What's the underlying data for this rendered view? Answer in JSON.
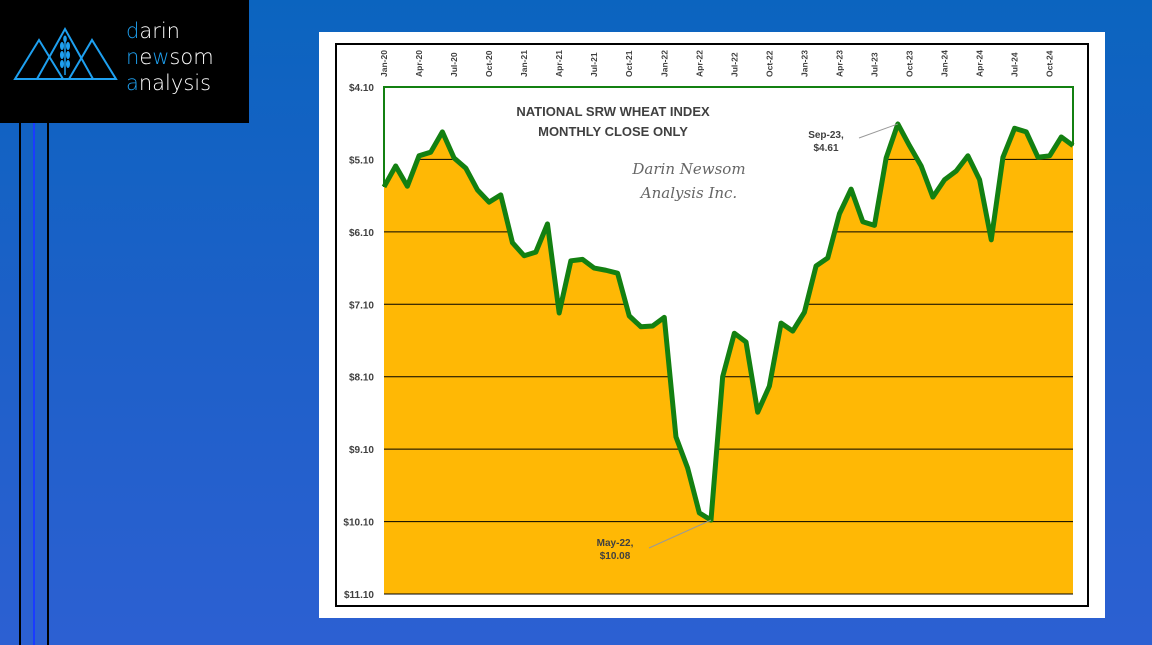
{
  "logo": {
    "line1_first": "d",
    "line1_rest": "arin",
    "line2_first": "n",
    "line2_mid": "ew",
    "line2_e": "e",
    "line2_n": "n",
    "line2_rest": "som",
    "line3_first": "a",
    "line3_rest": "nalysis",
    "text": "darin newsom analysis"
  },
  "colors": {
    "fill": "#ffb805",
    "line": "#138011",
    "grid": "#000000",
    "accent": "#1ea0f0"
  },
  "chart_data": {
    "type": "area",
    "title": "NATIONAL SRW WHEAT INDEX",
    "subtitle": "MONTHLY CLOSE ONLY",
    "watermark_line1": "Darin Newsom",
    "watermark_line2": "Analysis Inc.",
    "y_inverted": true,
    "ylim": [
      4.1,
      11.1
    ],
    "y_ticks": [
      "$4.10",
      "$5.10",
      "$6.10",
      "$7.10",
      "$8.10",
      "$9.10",
      "$10.10",
      "$11.10"
    ],
    "y_tick_values": [
      4.1,
      5.1,
      6.1,
      7.1,
      8.1,
      9.1,
      10.1,
      11.1
    ],
    "x_tick_labels": [
      "Jan-20",
      "Apr-20",
      "Jul-20",
      "Oct-20",
      "Jan-21",
      "Apr-21",
      "Jul-21",
      "Oct-21",
      "Jan-22",
      "Apr-22",
      "Jul-22",
      "Oct-22",
      "Jan-23",
      "Apr-23",
      "Jul-23",
      "Oct-23",
      "Jan-24",
      "Apr-24",
      "Jul-24",
      "Oct-24"
    ],
    "x_start": "Jan-20",
    "x_end": "Dec-24",
    "values": [
      5.48,
      5.19,
      5.47,
      5.05,
      5.0,
      4.72,
      5.08,
      5.22,
      5.52,
      5.69,
      5.59,
      6.25,
      6.43,
      6.38,
      5.99,
      7.22,
      6.5,
      6.48,
      6.6,
      6.63,
      6.67,
      7.26,
      7.41,
      7.4,
      7.28,
      8.93,
      9.36,
      9.98,
      10.08,
      8.1,
      7.5,
      7.62,
      8.59,
      8.23,
      7.36,
      7.47,
      7.21,
      6.57,
      6.46,
      5.85,
      5.51,
      5.96,
      6.01,
      5.08,
      4.61,
      4.91,
      5.19,
      5.62,
      5.38,
      5.26,
      5.05,
      5.38,
      6.21,
      5.07,
      4.67,
      4.72,
      5.07,
      5.05,
      4.79,
      4.91
    ],
    "annotations": [
      {
        "index": 28,
        "line1": "May-22,",
        "line2": "$10.08"
      },
      {
        "index": 44,
        "line1": "Sep-23,",
        "line2": "$4.61"
      }
    ]
  }
}
